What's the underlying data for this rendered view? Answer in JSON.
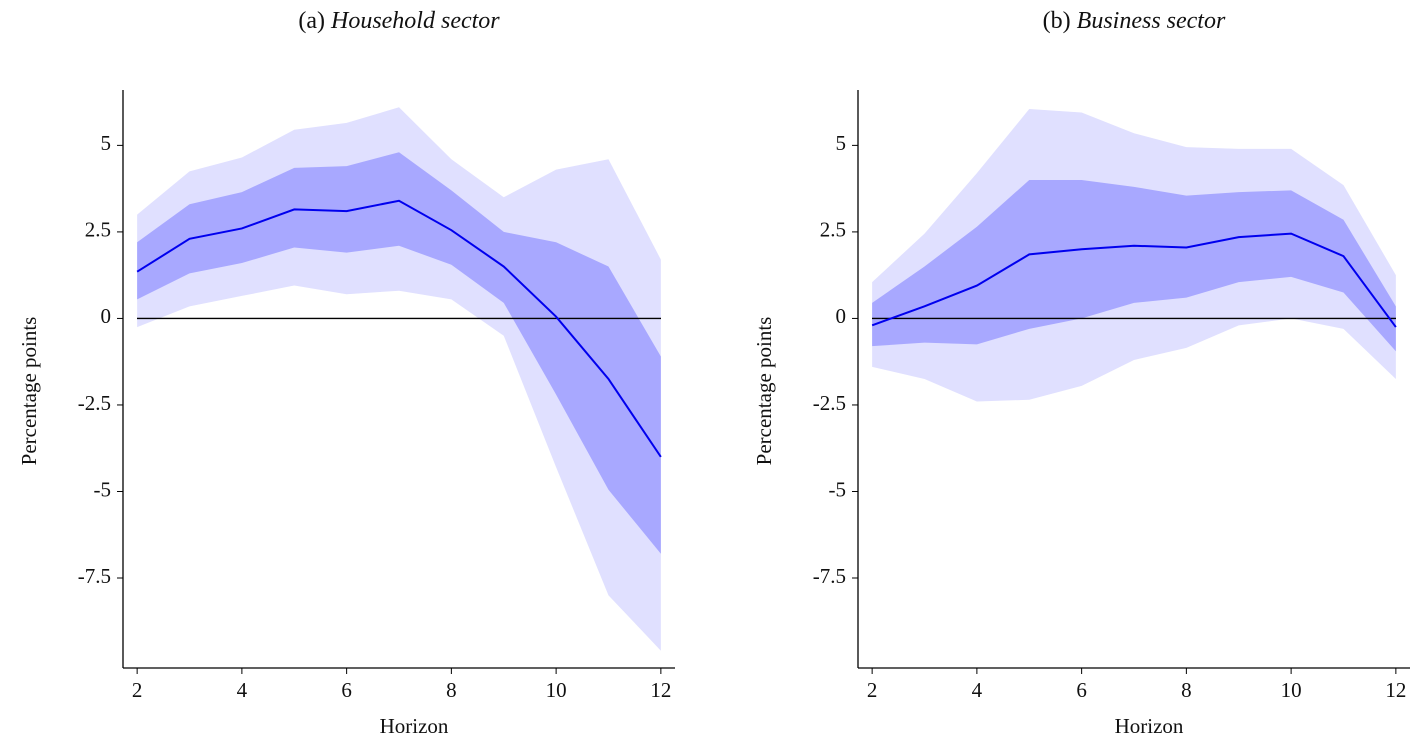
{
  "chart_data": [
    {
      "type": "line",
      "label": "(a)",
      "title": "Household sector",
      "x_label": "Horizon",
      "y_label": "Percentage points",
      "x": [
        2,
        3,
        4,
        5,
        6,
        7,
        8,
        9,
        10,
        11,
        12
      ],
      "xlim": [
        1.73,
        12.27
      ],
      "xticks": [
        2,
        4,
        6,
        8,
        10,
        12
      ],
      "ylim": [
        -10.1,
        6.6
      ],
      "yticks": [
        5,
        2.5,
        0,
        -2.5,
        -5,
        -7.5
      ],
      "hline": 0,
      "bands": [
        {
          "color": "#e0e0ff",
          "upper": [
            3.0,
            4.25,
            4.65,
            5.45,
            5.65,
            6.1,
            4.6,
            3.5,
            4.3,
            4.6,
            1.7
          ],
          "lower": [
            -0.25,
            0.35,
            0.65,
            0.95,
            0.7,
            0.8,
            0.55,
            -0.5,
            -4.3,
            -8.0,
            -9.6
          ]
        },
        {
          "color": "#a8a8ff",
          "upper": [
            2.2,
            3.3,
            3.65,
            4.35,
            4.4,
            4.8,
            3.7,
            2.5,
            2.2,
            1.5,
            -1.1
          ],
          "lower": [
            0.55,
            1.3,
            1.6,
            2.05,
            1.9,
            2.1,
            1.55,
            0.45,
            -2.2,
            -4.95,
            -6.8
          ]
        }
      ],
      "series": [
        {
          "color": "#0000ee",
          "values": [
            1.35,
            2.3,
            2.6,
            3.15,
            3.1,
            3.4,
            2.55,
            1.5,
            0.05,
            -1.75,
            -4.0
          ]
        }
      ]
    },
    {
      "type": "line",
      "label": "(b)",
      "title": "Business sector",
      "x_label": "Horizon",
      "y_label": "Percentage points",
      "x": [
        2,
        3,
        4,
        5,
        6,
        7,
        8,
        9,
        10,
        11,
        12
      ],
      "xlim": [
        1.73,
        12.27
      ],
      "xticks": [
        2,
        4,
        6,
        8,
        10,
        12
      ],
      "ylim": [
        -10.1,
        6.6
      ],
      "yticks": [
        5,
        2.5,
        0,
        -2.5,
        -5,
        -7.5
      ],
      "hline": 0,
      "bands": [
        {
          "color": "#e0e0ff",
          "upper": [
            1.05,
            2.45,
            4.2,
            6.05,
            5.95,
            5.35,
            4.95,
            4.9,
            4.9,
            3.85,
            1.25
          ],
          "lower": [
            -1.4,
            -1.75,
            -2.4,
            -2.35,
            -1.95,
            -1.2,
            -0.85,
            -0.2,
            0.0,
            -0.3,
            -1.75
          ]
        },
        {
          "color": "#a8a8ff",
          "upper": [
            0.45,
            1.5,
            2.65,
            4.0,
            4.0,
            3.8,
            3.55,
            3.65,
            3.7,
            2.85,
            0.35
          ],
          "lower": [
            -0.8,
            -0.7,
            -0.75,
            -0.3,
            0.0,
            0.45,
            0.6,
            1.05,
            1.2,
            0.75,
            -0.95
          ]
        }
      ],
      "series": [
        {
          "color": "#0000ee",
          "values": [
            -0.2,
            0.35,
            0.95,
            1.85,
            2.0,
            2.1,
            2.05,
            2.35,
            2.45,
            1.8,
            -0.25
          ]
        }
      ]
    }
  ]
}
